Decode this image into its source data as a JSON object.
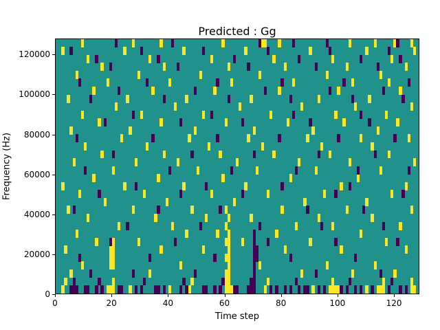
{
  "title": "Predicted : Gg",
  "chart_data": {
    "type": "heatmap",
    "title": "Predicted : Gg",
    "xlabel": "Time step",
    "ylabel": "Frequency (Hz)",
    "xlim": [
      0,
      129
    ],
    "ylim": [
      0,
      128000
    ],
    "xticks": [
      0,
      20,
      40,
      60,
      80,
      100,
      120
    ],
    "yticks": [
      0,
      20000,
      40000,
      60000,
      80000,
      100000,
      120000
    ],
    "grid_cols": 129,
    "grid_rows": 32,
    "legend": null,
    "colors": {
      "figure": "#ffffff",
      "background": "#21918c",
      "high": "#fde725",
      "low": "#440154",
      "axis": "#000000"
    },
    "cells_high": [
      [
        2,
        0
      ],
      [
        18,
        0
      ],
      [
        19,
        0
      ],
      [
        20,
        0
      ],
      [
        26,
        0
      ],
      [
        40,
        0
      ],
      [
        47,
        0
      ],
      [
        60,
        0
      ],
      [
        61,
        0
      ],
      [
        62,
        0
      ],
      [
        74,
        0
      ],
      [
        91,
        0
      ],
      [
        97,
        0
      ],
      [
        98,
        0
      ],
      [
        99,
        0
      ],
      [
        100,
        0
      ],
      [
        110,
        0
      ],
      [
        114,
        0
      ],
      [
        115,
        0
      ],
      [
        116,
        0
      ],
      [
        126,
        0
      ],
      [
        127,
        0
      ],
      [
        3,
        1
      ],
      [
        20,
        1
      ],
      [
        48,
        1
      ],
      [
        60,
        1
      ],
      [
        61,
        1
      ],
      [
        75,
        1
      ],
      [
        98,
        1
      ],
      [
        116,
        1
      ],
      [
        126,
        1
      ],
      [
        60,
        2
      ],
      [
        61,
        2
      ],
      [
        61,
        3
      ],
      [
        60,
        4
      ],
      [
        61,
        4
      ],
      [
        61,
        5
      ],
      [
        60,
        6
      ],
      [
        61,
        6
      ],
      [
        61,
        7
      ],
      [
        60,
        8
      ],
      [
        61,
        9
      ],
      [
        60,
        10
      ],
      [
        19,
        3
      ],
      [
        20,
        3
      ],
      [
        19,
        4
      ],
      [
        20,
        4
      ],
      [
        19,
        5
      ],
      [
        20,
        5
      ],
      [
        20,
        6
      ],
      [
        5,
        2
      ],
      [
        33,
        2
      ],
      [
        87,
        2
      ],
      [
        105,
        2
      ],
      [
        120,
        2
      ],
      [
        9,
        3
      ],
      [
        44,
        3
      ],
      [
        72,
        3
      ],
      [
        96,
        3
      ],
      [
        113,
        3
      ],
      [
        3,
        5
      ],
      [
        37,
        5
      ],
      [
        52,
        5
      ],
      [
        81,
        5
      ],
      [
        101,
        5
      ],
      [
        124,
        5
      ],
      [
        14,
        6
      ],
      [
        29,
        6
      ],
      [
        66,
        6
      ],
      [
        90,
        6
      ],
      [
        117,
        6
      ],
      [
        7,
        7
      ],
      [
        46,
        7
      ],
      [
        57,
        7
      ],
      [
        78,
        7
      ],
      [
        108,
        7
      ],
      [
        22,
        8
      ],
      [
        41,
        8
      ],
      [
        85,
        8
      ],
      [
        98,
        8
      ],
      [
        122,
        8
      ],
      [
        11,
        9
      ],
      [
        35,
        9
      ],
      [
        53,
        9
      ],
      [
        69,
        9
      ],
      [
        93,
        9
      ],
      [
        112,
        9
      ],
      [
        4,
        10
      ],
      [
        27,
        10
      ],
      [
        48,
        10
      ],
      [
        80,
        10
      ],
      [
        103,
        10
      ],
      [
        126,
        10
      ],
      [
        17,
        11
      ],
      [
        39,
        11
      ],
      [
        63,
        11
      ],
      [
        88,
        11
      ],
      [
        110,
        11
      ],
      [
        8,
        12
      ],
      [
        31,
        12
      ],
      [
        55,
        12
      ],
      [
        75,
        12
      ],
      [
        95,
        12
      ],
      [
        119,
        12
      ],
      [
        2,
        13
      ],
      [
        24,
        13
      ],
      [
        45,
        13
      ],
      [
        67,
        13
      ],
      [
        101,
        13
      ],
      [
        124,
        13
      ],
      [
        13,
        14
      ],
      [
        36,
        14
      ],
      [
        59,
        14
      ],
      [
        83,
        14
      ],
      [
        107,
        14
      ],
      [
        20,
        15
      ],
      [
        50,
        15
      ],
      [
        71,
        15
      ],
      [
        92,
        15
      ],
      [
        115,
        15
      ],
      [
        6,
        16
      ],
      [
        28,
        16
      ],
      [
        43,
        16
      ],
      [
        64,
        16
      ],
      [
        86,
        16
      ],
      [
        104,
        16
      ],
      [
        127,
        16
      ],
      [
        16,
        17
      ],
      [
        38,
        17
      ],
      [
        58,
        17
      ],
      [
        77,
        17
      ],
      [
        97,
        17
      ],
      [
        118,
        17
      ],
      [
        10,
        18
      ],
      [
        32,
        18
      ],
      [
        54,
        18
      ],
      [
        73,
        18
      ],
      [
        94,
        18
      ],
      [
        112,
        18
      ],
      [
        23,
        19
      ],
      [
        47,
        19
      ],
      [
        68,
        19
      ],
      [
        89,
        19
      ],
      [
        108,
        19
      ],
      [
        125,
        19
      ],
      [
        5,
        20
      ],
      [
        26,
        20
      ],
      [
        49,
        20
      ],
      [
        70,
        20
      ],
      [
        91,
        20
      ],
      [
        114,
        20
      ],
      [
        15,
        21
      ],
      [
        37,
        21
      ],
      [
        60,
        21
      ],
      [
        82,
        21
      ],
      [
        102,
        21
      ],
      [
        121,
        21
      ],
      [
        9,
        22
      ],
      [
        30,
        22
      ],
      [
        52,
        22
      ],
      [
        76,
        22
      ],
      [
        99,
        22
      ],
      [
        117,
        22
      ],
      [
        21,
        23
      ],
      [
        42,
        23
      ],
      [
        65,
        23
      ],
      [
        87,
        23
      ],
      [
        106,
        23
      ],
      [
        126,
        23
      ],
      [
        4,
        24
      ],
      [
        25,
        24
      ],
      [
        46,
        24
      ],
      [
        69,
        24
      ],
      [
        93,
        24
      ],
      [
        111,
        24
      ],
      [
        13,
        25
      ],
      [
        34,
        25
      ],
      [
        56,
        25
      ],
      [
        79,
        25
      ],
      [
        100,
        25
      ],
      [
        122,
        25
      ],
      [
        18,
        26
      ],
      [
        40,
        26
      ],
      [
        62,
        26
      ],
      [
        84,
        26
      ],
      [
        105,
        26
      ],
      [
        118,
        26
      ],
      [
        7,
        27
      ],
      [
        29,
        27
      ],
      [
        51,
        27
      ],
      [
        72,
        27
      ],
      [
        96,
        27
      ],
      [
        115,
        27
      ],
      [
        16,
        28
      ],
      [
        38,
        28
      ],
      [
        61,
        28
      ],
      [
        81,
        28
      ],
      [
        103,
        28
      ],
      [
        124,
        28
      ],
      [
        11,
        29
      ],
      [
        33,
        29
      ],
      [
        55,
        29
      ],
      [
        77,
        29
      ],
      [
        98,
        29
      ],
      [
        119,
        29
      ],
      [
        2,
        30
      ],
      [
        24,
        30
      ],
      [
        45,
        30
      ],
      [
        67,
        30
      ],
      [
        90,
        30
      ],
      [
        110,
        30
      ],
      [
        127,
        30
      ],
      [
        9,
        31
      ],
      [
        27,
        31
      ],
      [
        37,
        31
      ],
      [
        59,
        31
      ],
      [
        73,
        31
      ],
      [
        74,
        31
      ],
      [
        79,
        31
      ],
      [
        104,
        31
      ],
      [
        113,
        31
      ],
      [
        120,
        31
      ],
      [
        126,
        31
      ]
    ],
    "cells_low": [
      [
        5,
        0
      ],
      [
        6,
        0
      ],
      [
        7,
        0
      ],
      [
        10,
        0
      ],
      [
        11,
        0
      ],
      [
        14,
        0
      ],
      [
        16,
        0
      ],
      [
        22,
        0
      ],
      [
        23,
        0
      ],
      [
        28,
        0
      ],
      [
        30,
        0
      ],
      [
        35,
        0
      ],
      [
        36,
        0
      ],
      [
        38,
        0
      ],
      [
        44,
        0
      ],
      [
        46,
        0
      ],
      [
        52,
        0
      ],
      [
        53,
        0
      ],
      [
        56,
        0
      ],
      [
        58,
        0
      ],
      [
        63,
        0
      ],
      [
        64,
        0
      ],
      [
        68,
        0
      ],
      [
        69,
        0
      ],
      [
        70,
        0
      ],
      [
        76,
        0
      ],
      [
        78,
        0
      ],
      [
        81,
        0
      ],
      [
        83,
        0
      ],
      [
        86,
        0
      ],
      [
        88,
        0
      ],
      [
        89,
        0
      ],
      [
        93,
        0
      ],
      [
        95,
        0
      ],
      [
        101,
        0
      ],
      [
        103,
        0
      ],
      [
        106,
        0
      ],
      [
        108,
        0
      ],
      [
        112,
        0
      ],
      [
        118,
        0
      ],
      [
        122,
        0
      ],
      [
        124,
        0
      ],
      [
        6,
        1
      ],
      [
        15,
        1
      ],
      [
        31,
        1
      ],
      [
        45,
        1
      ],
      [
        59,
        1
      ],
      [
        69,
        1
      ],
      [
        70,
        1
      ],
      [
        85,
        1
      ],
      [
        104,
        1
      ],
      [
        119,
        1
      ],
      [
        70,
        2
      ],
      [
        70,
        3
      ],
      [
        70,
        4
      ],
      [
        70,
        5
      ],
      [
        70,
        6
      ],
      [
        70,
        7
      ],
      [
        71,
        4
      ],
      [
        71,
        5
      ],
      [
        12,
        2
      ],
      [
        27,
        2
      ],
      [
        49,
        2
      ],
      [
        92,
        2
      ],
      [
        115,
        2
      ],
      [
        8,
        4
      ],
      [
        33,
        4
      ],
      [
        56,
        4
      ],
      [
        83,
        4
      ],
      [
        106,
        4
      ],
      [
        19,
        6
      ],
      [
        42,
        6
      ],
      [
        75,
        6
      ],
      [
        99,
        6
      ],
      [
        121,
        6
      ],
      [
        25,
        8
      ],
      [
        51,
        8
      ],
      [
        72,
        8
      ],
      [
        94,
        8
      ],
      [
        116,
        8
      ],
      [
        6,
        10
      ],
      [
        36,
        10
      ],
      [
        58,
        10
      ],
      [
        89,
        10
      ],
      [
        109,
        10
      ],
      [
        15,
        12
      ],
      [
        44,
        12
      ],
      [
        66,
        12
      ],
      [
        99,
        12
      ],
      [
        123,
        12
      ],
      [
        28,
        13
      ],
      [
        53,
        13
      ],
      [
        80,
        13
      ],
      [
        104,
        13
      ],
      [
        10,
        15
      ],
      [
        40,
        15
      ],
      [
        62,
        15
      ],
      [
        85,
        15
      ],
      [
        107,
        15
      ],
      [
        125,
        15
      ],
      [
        20,
        17
      ],
      [
        48,
        17
      ],
      [
        70,
        17
      ],
      [
        93,
        17
      ],
      [
        113,
        17
      ],
      [
        7,
        19
      ],
      [
        34,
        19
      ],
      [
        57,
        19
      ],
      [
        79,
        19
      ],
      [
        100,
        19
      ],
      [
        120,
        19
      ],
      [
        17,
        21
      ],
      [
        44,
        21
      ],
      [
        66,
        21
      ],
      [
        90,
        21
      ],
      [
        111,
        21
      ],
      [
        27,
        22
      ],
      [
        55,
        22
      ],
      [
        84,
        22
      ],
      [
        108,
        22
      ],
      [
        12,
        24
      ],
      [
        38,
        24
      ],
      [
        61,
        24
      ],
      [
        83,
        24
      ],
      [
        105,
        24
      ],
      [
        123,
        24
      ],
      [
        22,
        25
      ],
      [
        49,
        25
      ],
      [
        74,
        25
      ],
      [
        97,
        25
      ],
      [
        116,
        25
      ],
      [
        8,
        26
      ],
      [
        32,
        26
      ],
      [
        57,
        26
      ],
      [
        80,
        26
      ],
      [
        102,
        26
      ],
      [
        125,
        26
      ],
      [
        19,
        28
      ],
      [
        43,
        28
      ],
      [
        68,
        28
      ],
      [
        92,
        28
      ],
      [
        114,
        28
      ],
      [
        14,
        29
      ],
      [
        36,
        29
      ],
      [
        63,
        29
      ],
      [
        86,
        29
      ],
      [
        108,
        29
      ],
      [
        122,
        29
      ],
      [
        5,
        30
      ],
      [
        30,
        30
      ],
      [
        52,
        30
      ],
      [
        75,
        30
      ],
      [
        97,
        30
      ],
      [
        118,
        30
      ],
      [
        21,
        31
      ],
      [
        41,
        31
      ],
      [
        72,
        31
      ],
      [
        84,
        31
      ],
      [
        96,
        31
      ],
      [
        121,
        31
      ]
    ]
  }
}
